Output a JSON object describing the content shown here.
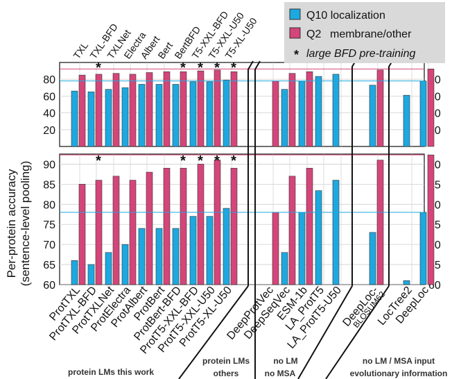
{
  "chart_data": {
    "type": "bar",
    "ylabel_lines": [
      "Per-protein accuracy",
      "(sentence-level pooling)"
    ],
    "legend": {
      "series_1": "Q10 localization",
      "series_2_a": "Q2",
      "series_2_b": "membrane/other",
      "note_marker": "*",
      "note": "large BFD pre-training"
    },
    "colors": {
      "q10": "#1ea8e0",
      "q2": "#d4457a"
    },
    "categories": [
      "ProtTXL",
      "ProtTXL-BFD",
      "ProtTXLNet",
      "ProtElectra",
      "ProtAlbert",
      "ProtBert",
      "ProtBert-BFD",
      "ProtT5-XXL-BFD",
      "ProtT5-XXL-U50",
      "ProtT5-XL-U50",
      "DeepProtVec",
      "DeepSeqVec",
      "ESM-1b",
      "LA_ProtT5",
      "LA_ProtT5-U50",
      "DeepLoc-BLOSUM62",
      "LocTree2",
      "DeepLoc"
    ],
    "category_label_lines": [
      [
        "ProtTXL"
      ],
      [
        "ProtTXL-BFD"
      ],
      [
        "ProtTXLNet"
      ],
      [
        "ProtElectra"
      ],
      [
        "ProtAlbert"
      ],
      [
        "ProtBert"
      ],
      [
        "ProtBert-BFD"
      ],
      [
        "ProtT5-XXL-BFD"
      ],
      [
        "ProtT5-XXL-U50"
      ],
      [
        "ProtT5-XL-U50"
      ],
      [
        "DeepProtVec"
      ],
      [
        "DeepSeqVec"
      ],
      [
        "ESM-1b"
      ],
      [
        "LA_ProtT5"
      ],
      [
        "LA_ProtT5-U50"
      ],
      [
        "DeepLoc-",
        "BLOSUM62"
      ],
      [
        "LocTree2"
      ],
      [
        "DeepLoc"
      ]
    ],
    "top_labels": [
      "TXL",
      "TXL-BFD",
      "TXLNet",
      "Electra",
      "Albert",
      "Bert",
      "BertBFD",
      "T5-XXL-BFD",
      "T5-XXL-U50",
      "T5-XL-U50"
    ],
    "bfd_flags": [
      false,
      true,
      false,
      false,
      false,
      false,
      true,
      true,
      true,
      true,
      false,
      false,
      false,
      false,
      false,
      false,
      false,
      false
    ],
    "series": [
      {
        "name": "Q10 localization",
        "values": [
          66,
          65,
          68,
          70,
          74,
          74,
          74,
          77,
          77,
          79,
          null,
          68,
          78,
          83.4,
          86,
          73,
          61,
          78
        ]
      },
      {
        "name": "Q2 membrane/other",
        "values": [
          85,
          86,
          87,
          86,
          88,
          89,
          89,
          90,
          91,
          89,
          78,
          87,
          89,
          null,
          null,
          91,
          null,
          92.3
        ]
      }
    ],
    "panels": [
      {
        "ylim": [
          0,
          100
        ],
        "ticks": [
          20,
          40,
          60,
          80
        ]
      },
      {
        "ylim": [
          60,
          92.5
        ],
        "ticks": [
          60,
          65,
          70,
          75,
          80,
          85,
          90
        ]
      }
    ],
    "reference_lines": {
      "q10": 78,
      "q2": 92.3
    },
    "groups": [
      {
        "lines": [
          "protein LMs this work"
        ]
      },
      {
        "lines": [
          "protein LMs",
          "others"
        ]
      },
      {
        "lines": [
          "no LM",
          "no MSA"
        ]
      },
      {
        "lines": [
          "no LM / MSA input",
          "evolutionary information"
        ]
      }
    ]
  }
}
